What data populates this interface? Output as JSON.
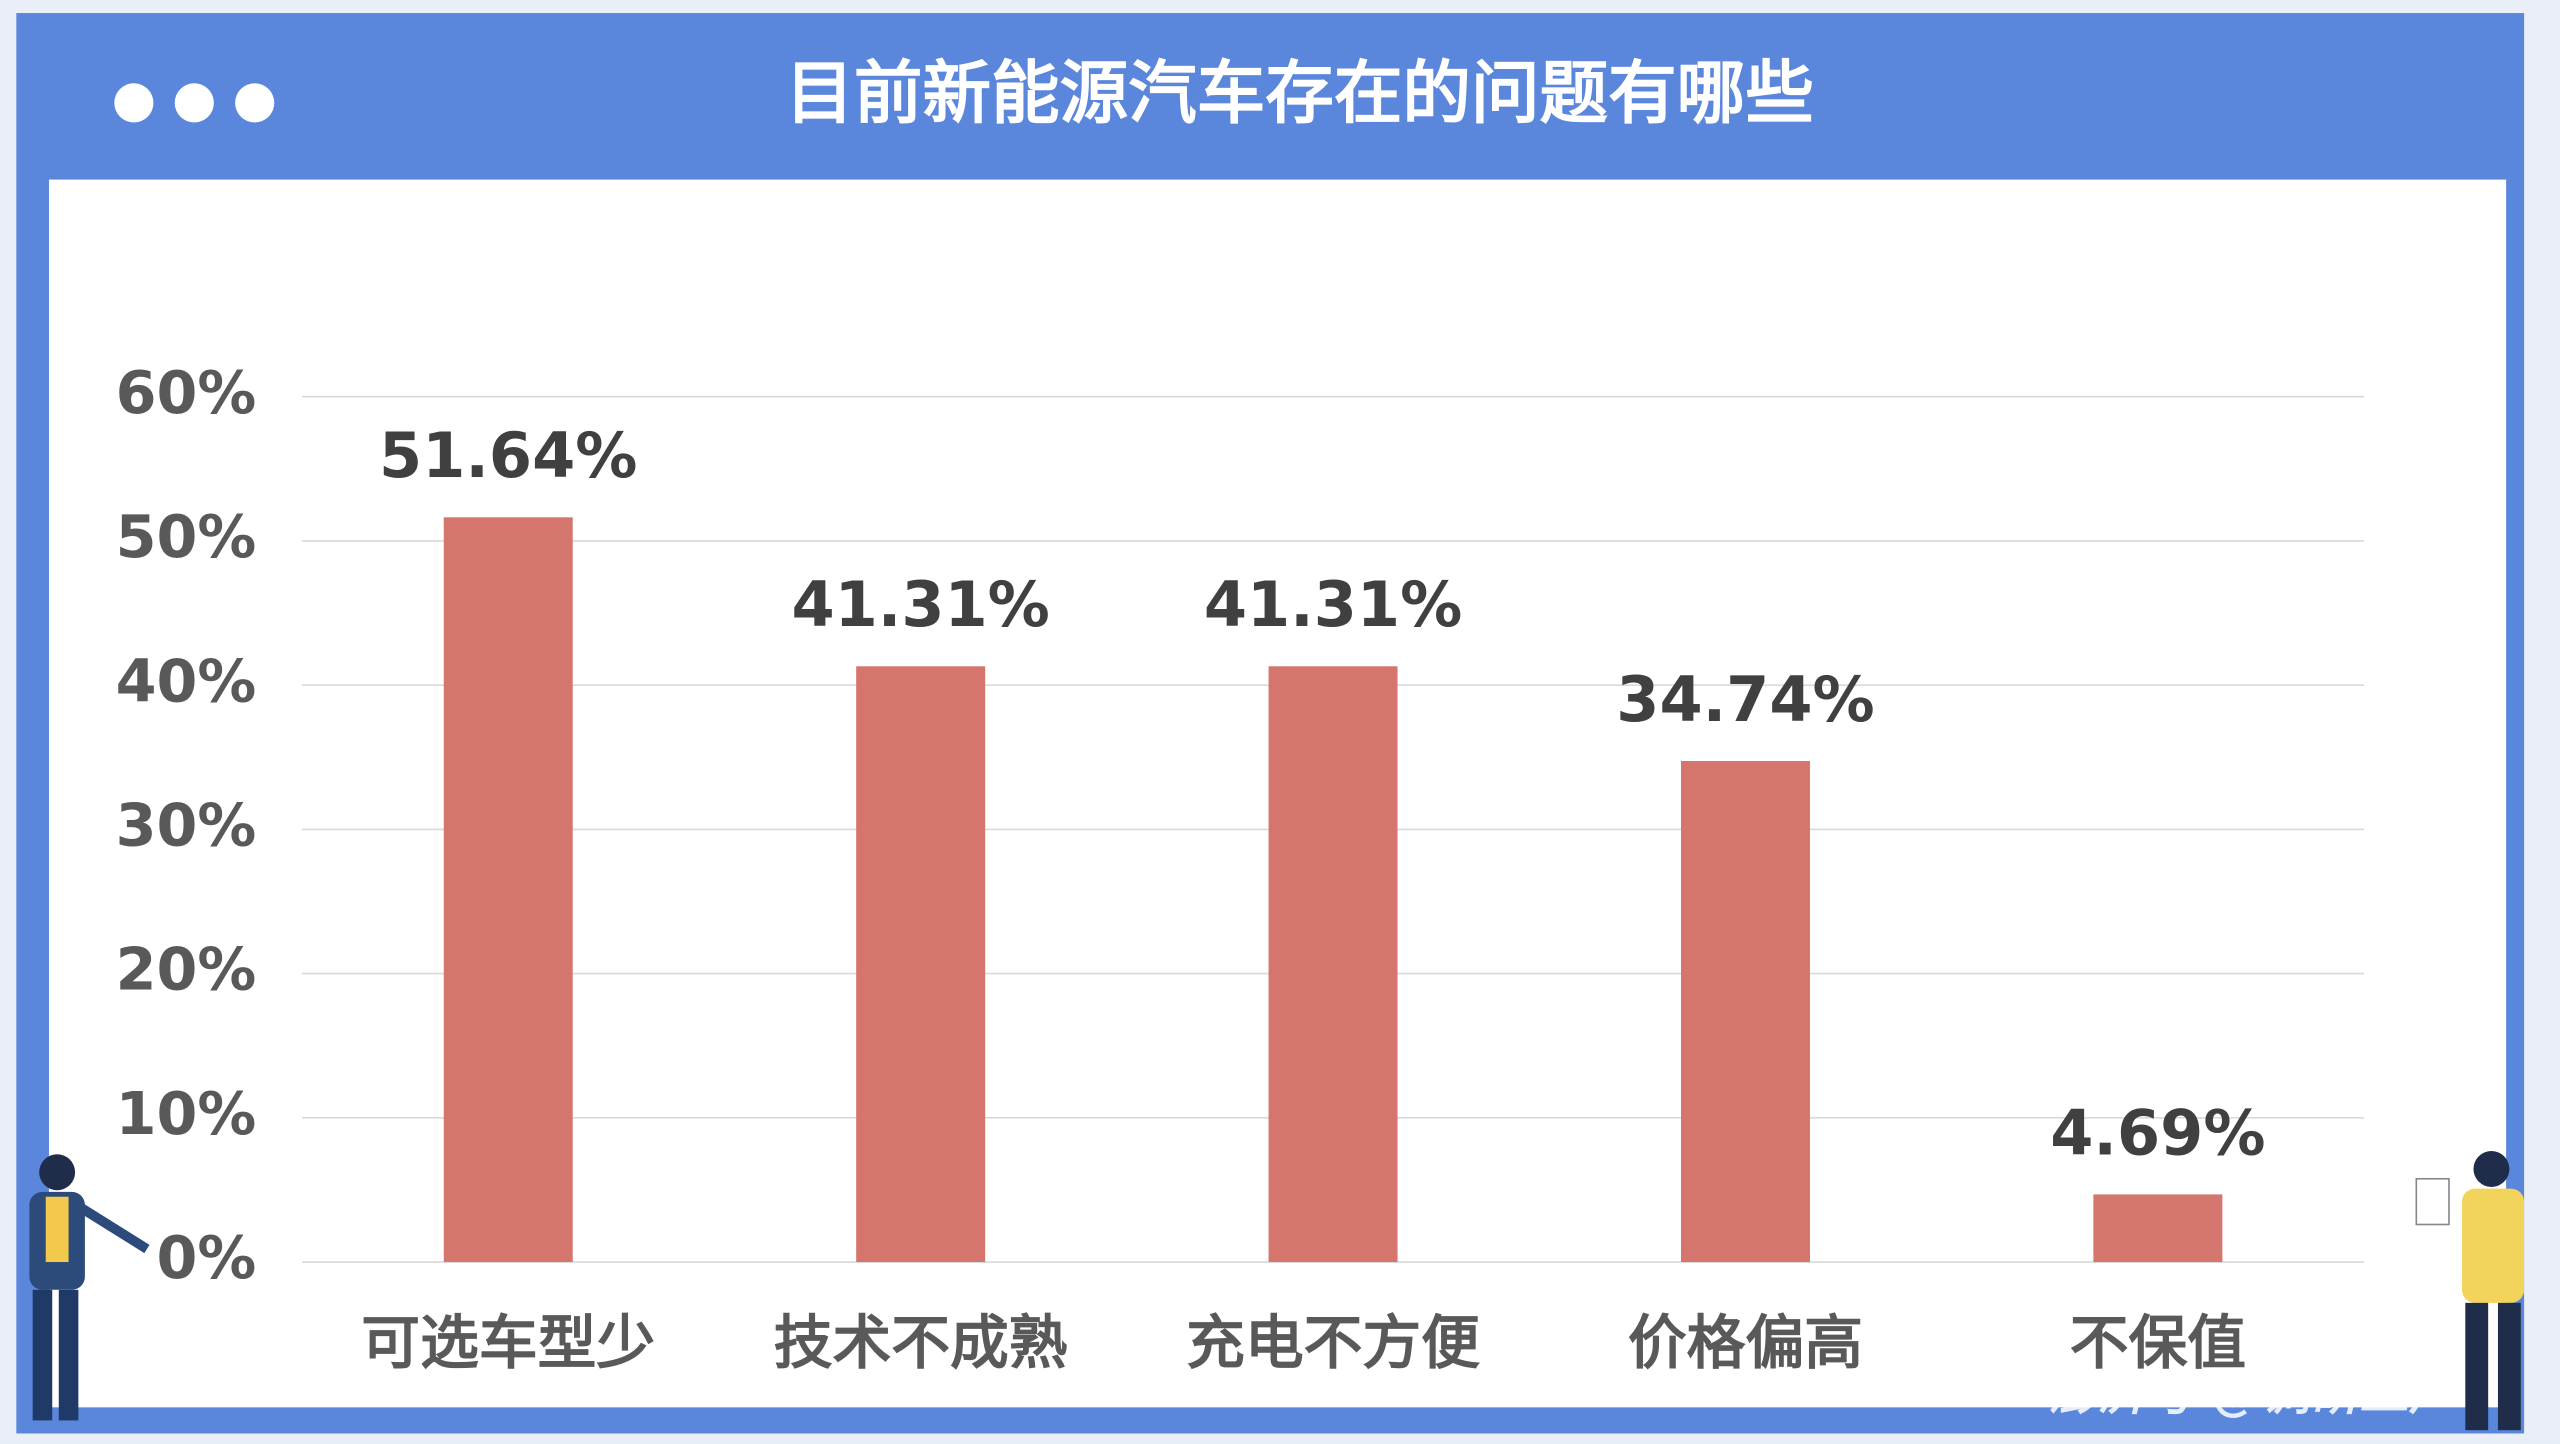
{
  "chart_data": {
    "type": "bar",
    "title": "目前新能源汽车存在的问题有哪些",
    "categories": [
      "可选车型少",
      "技术不成熟",
      "充电不方便",
      "价格偏高",
      "不保值"
    ],
    "values": [
      51.64,
      41.31,
      41.31,
      34.74,
      4.69
    ],
    "value_labels": [
      "51.64%",
      "41.31%",
      "41.31%",
      "34.74%",
      "4.69%"
    ],
    "color": "#d4756e",
    "ylim": [
      0,
      60
    ],
    "yticks": [
      {
        "value": 0,
        "label": "0%"
      },
      {
        "value": 10,
        "label": "10%"
      },
      {
        "value": 20,
        "label": "20%"
      },
      {
        "value": 30,
        "label": "30%"
      },
      {
        "value": 40,
        "label": "40%"
      },
      {
        "value": 50,
        "label": "50%"
      },
      {
        "value": 60,
        "label": "60%"
      }
    ],
    "grid": true,
    "watermark": "澎湃号 @调研工厂"
  }
}
